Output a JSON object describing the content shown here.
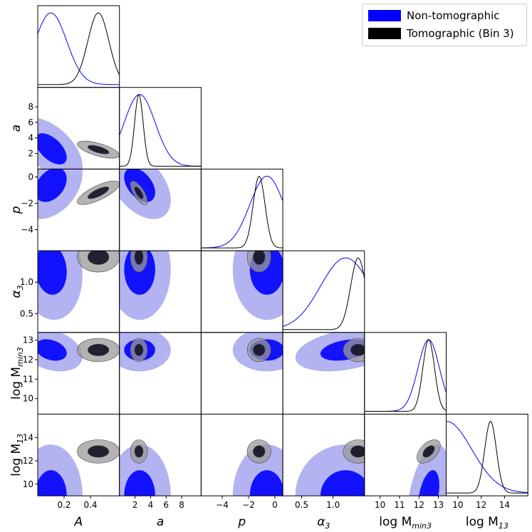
{
  "chart_data": {
    "type": "corner",
    "title": "",
    "parameters": [
      "A",
      "a",
      "p",
      "α3",
      "log Mmin3",
      "log M13"
    ],
    "axis_labels": [
      {
        "main": "A",
        "sub": ""
      },
      {
        "main": "a",
        "sub": ""
      },
      {
        "main": "p",
        "sub": ""
      },
      {
        "main": "α",
        "sub": "3"
      },
      {
        "main": "log M",
        "sub": "min3"
      },
      {
        "main": "log M",
        "sub": "13"
      }
    ],
    "ranges": [
      [
        0.0,
        0.62
      ],
      [
        0.0,
        10.5
      ],
      [
        -5.6,
        0.6
      ],
      [
        0.2,
        1.5
      ],
      [
        9.2,
        13.4
      ],
      [
        9.0,
        16.0
      ]
    ],
    "ticks": [
      [
        0.2,
        0.4
      ],
      [
        2,
        4,
        6,
        8
      ],
      [
        -4,
        -2,
        0
      ],
      [
        0.5,
        1.0
      ],
      [
        10,
        11,
        12,
        13
      ],
      [
        10,
        12,
        14
      ]
    ],
    "tick_labels": [
      [
        "0.2",
        "0.4"
      ],
      [
        "2",
        "4",
        "6",
        "8"
      ],
      [
        "−4",
        "−2",
        "0"
      ],
      [
        "0.5",
        "1.0"
      ],
      [
        "10",
        "11",
        "12",
        "13"
      ],
      [
        "10",
        "12",
        "14"
      ]
    ],
    "series": [
      {
        "name": "Non-tomographic",
        "color": "#0000ff",
        "fill_inner": "#0000ff",
        "fill_outer": "#9999ee",
        "peaks": [
          0.1,
          2.6,
          -0.6,
          1.2,
          12.5,
          9.0
        ],
        "sigmas": [
          0.12,
          2.0,
          1.3,
          0.4,
          0.55,
          2.2
        ],
        "correlations": {
          "1-0": -0.55,
          "2-0": 0.35,
          "2-1": -0.45,
          "3-0": -0.1,
          "4-0": -0.3,
          "4-3": 0.35,
          "5-4": 0.4
        }
      },
      {
        "name": "Tomographic (Bin 3)",
        "color": "#000000",
        "fill_inner": "#111122",
        "fill_outer": "#999999",
        "peaks": [
          0.46,
          2.5,
          -1.2,
          1.4,
          12.5,
          12.8
        ],
        "sigmas": [
          0.08,
          0.55,
          0.45,
          0.12,
          0.3,
          0.5
        ],
        "correlations": {
          "1-0": -0.65,
          "2-0": 0.75,
          "2-1": -0.7,
          "5-4": 0.5
        }
      }
    ],
    "legend": {
      "position": "top-right",
      "entries": [
        "Non-tomographic",
        "Tomographic (Bin 3)"
      ]
    }
  }
}
